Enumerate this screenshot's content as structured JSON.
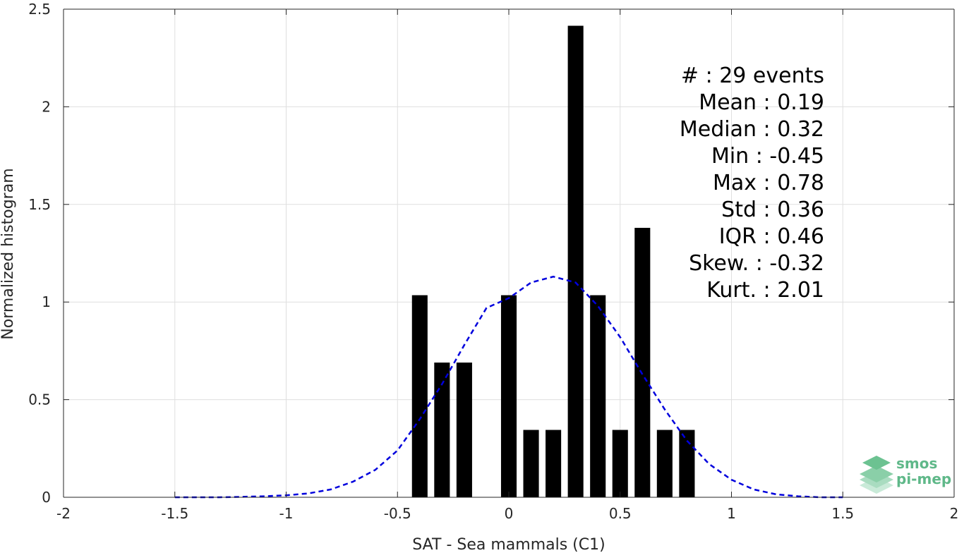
{
  "chart_data": {
    "type": "bar",
    "xlabel": "SAT - Sea mammals (C1)",
    "ylabel": "Normalized histogram",
    "xlim": [
      -2,
      2
    ],
    "ylim": [
      0,
      2.5
    ],
    "xticks": [
      -2,
      -1.5,
      -1,
      -0.5,
      0,
      0.5,
      1,
      1.5,
      2
    ],
    "xtick_labels": [
      "-2",
      "-1.5",
      "-1",
      "-0.5",
      "0",
      "0.5",
      "1",
      "1.5",
      "2"
    ],
    "yticks": [
      0,
      0.5,
      1,
      1.5,
      2,
      2.5
    ],
    "ytick_labels": [
      "0",
      "0.5",
      "1",
      "1.5",
      "2",
      "2.5"
    ],
    "grid": true,
    "bar_color": "#000000",
    "bin_width": 0.1,
    "bin_centers": [
      -0.4,
      -0.3,
      -0.2,
      -0.1,
      0.0,
      0.1,
      0.2,
      0.3,
      0.4,
      0.5,
      0.6,
      0.7,
      0.8
    ],
    "values": [
      1.035,
      0.69,
      0.69,
      0,
      1.035,
      0.345,
      0.345,
      2.415,
      1.035,
      0.345,
      1.38,
      0.345,
      0.345
    ],
    "fit_curve": {
      "style": "dashed",
      "color": "#0000dd",
      "x": [
        -1.5,
        -1.4,
        -1.3,
        -1.2,
        -1.1,
        -1.0,
        -0.9,
        -0.8,
        -0.7,
        -0.6,
        -0.5,
        -0.4,
        -0.3,
        -0.2,
        -0.1,
        0.0,
        0.1,
        0.2,
        0.3,
        0.4,
        0.5,
        0.6,
        0.7,
        0.8,
        0.9,
        1.0,
        1.1,
        1.2,
        1.3,
        1.4,
        1.5
      ],
      "y": [
        0,
        0,
        0,
        0.002,
        0.005,
        0.01,
        0.02,
        0.04,
        0.08,
        0.14,
        0.24,
        0.4,
        0.58,
        0.78,
        0.97,
        1.02,
        1.1,
        1.13,
        1.1,
        0.98,
        0.82,
        0.63,
        0.45,
        0.29,
        0.17,
        0.09,
        0.04,
        0.015,
        0.005,
        0,
        0
      ]
    },
    "annotations": [
      "#  : 29 events",
      "Mean : 0.19",
      "Median : 0.32",
      "Min : -0.45",
      "Max : 0.78",
      "Std : 0.36",
      "IQR : 0.46",
      "Skew. : -0.32",
      "Kurt. : 2.01"
    ]
  },
  "logo": {
    "line1": "smos",
    "line2": "pi-mep",
    "color": "#5fb889"
  }
}
